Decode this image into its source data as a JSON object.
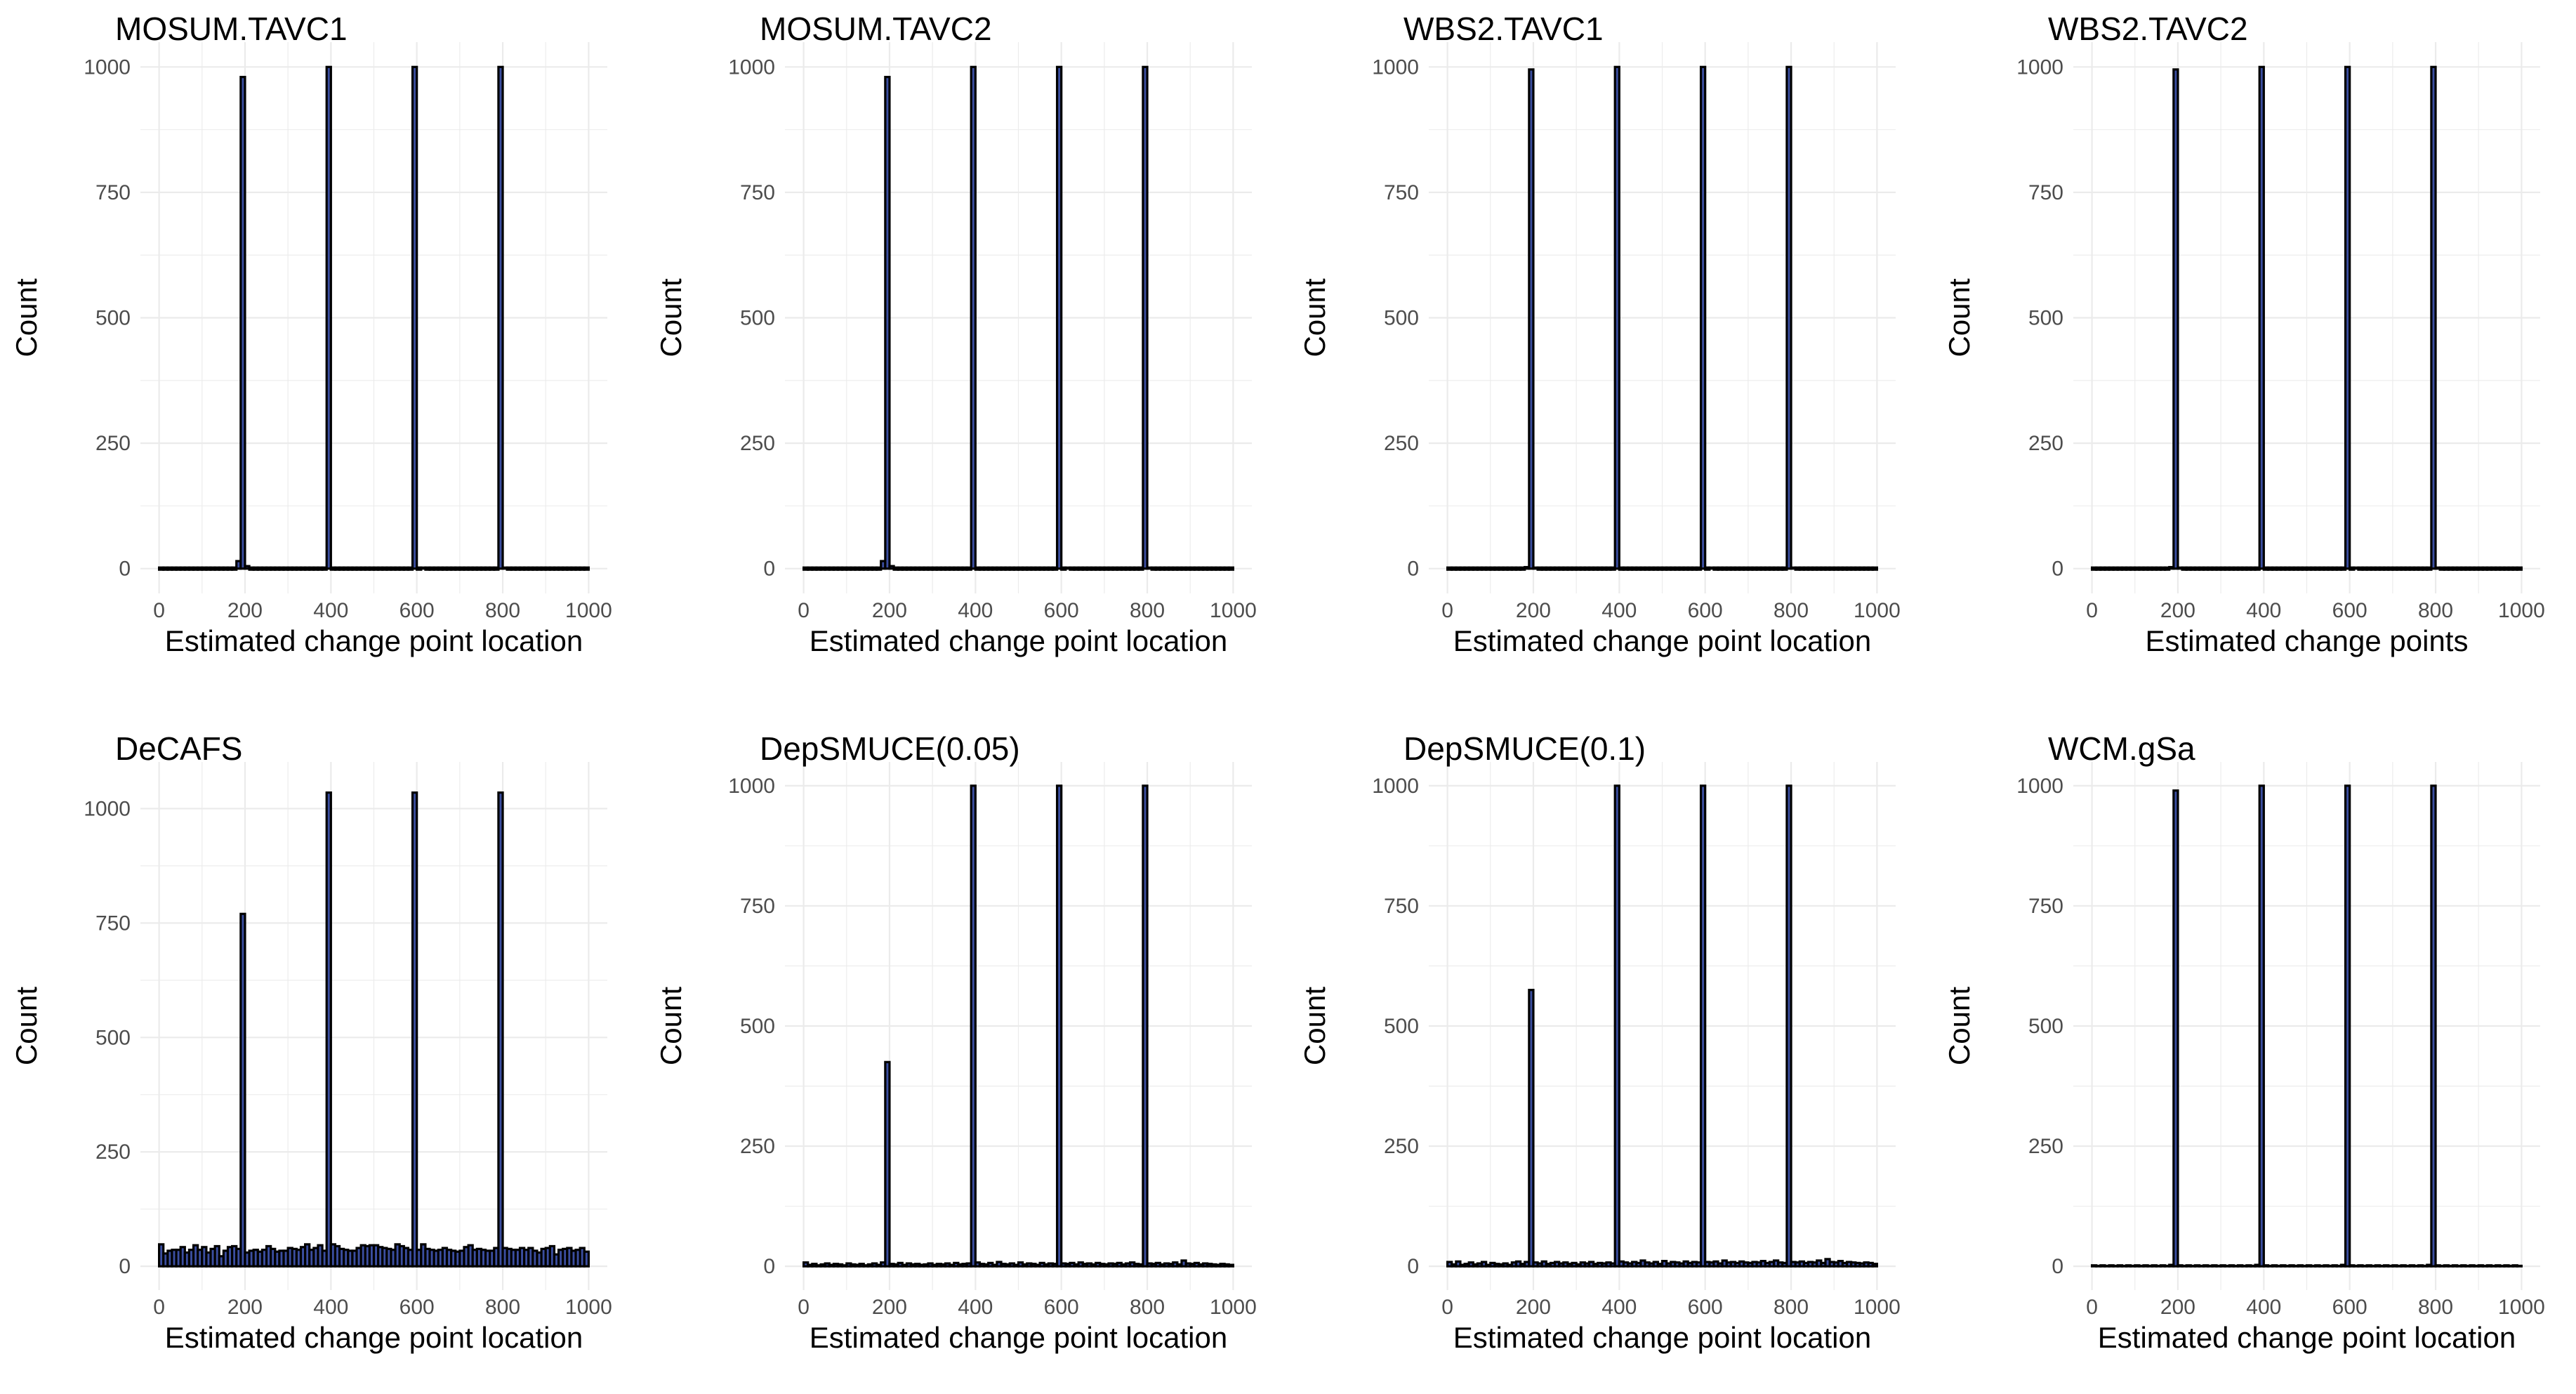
{
  "chart_data": [
    {
      "type": "bar",
      "title": "MOSUM.TAVC1",
      "xlabel": "Estimated change point location",
      "ylabel": "Count",
      "xlim": [
        0,
        1000
      ],
      "ylim": [
        0,
        1000
      ],
      "xticks": [
        "0",
        "200",
        "400",
        "600",
        "800",
        "1000"
      ],
      "yticks": [
        "0",
        "250",
        "500",
        "750",
        "1000"
      ],
      "grid": true,
      "bin_width": 10,
      "bins": [
        [
          180,
          15
        ],
        [
          190,
          980
        ],
        [
          200,
          5
        ],
        [
          390,
          1000
        ],
        [
          590,
          1000
        ],
        [
          610,
          2
        ],
        [
          790,
          1000
        ],
        [
          800,
          2
        ]
      ],
      "baseline": 0
    },
    {
      "type": "bar",
      "title": "MOSUM.TAVC2",
      "xlabel": "Estimated change point location",
      "ylabel": "Count",
      "xlim": [
        0,
        1000
      ],
      "ylim": [
        0,
        1000
      ],
      "xticks": [
        "0",
        "200",
        "400",
        "600",
        "800",
        "1000"
      ],
      "yticks": [
        "0",
        "250",
        "500",
        "750",
        "1000"
      ],
      "grid": true,
      "bin_width": 10,
      "bins": [
        [
          180,
          15
        ],
        [
          190,
          980
        ],
        [
          200,
          5
        ],
        [
          390,
          1000
        ],
        [
          590,
          1000
        ],
        [
          610,
          2
        ],
        [
          790,
          1000
        ],
        [
          800,
          2
        ]
      ],
      "baseline": 0
    },
    {
      "type": "bar",
      "title": "WBS2.TAVC1",
      "xlabel": "Estimated change point location",
      "ylabel": "Count",
      "xlim": [
        0,
        1000
      ],
      "ylim": [
        0,
        1000
      ],
      "xticks": [
        "0",
        "200",
        "400",
        "600",
        "800",
        "1000"
      ],
      "yticks": [
        "0",
        "250",
        "500",
        "750",
        "1000"
      ],
      "grid": true,
      "bin_width": 10,
      "bins": [
        [
          180,
          3
        ],
        [
          190,
          995
        ],
        [
          200,
          2
        ],
        [
          390,
          1000
        ],
        [
          590,
          1000
        ],
        [
          610,
          2
        ],
        [
          790,
          1000
        ],
        [
          800,
          2
        ]
      ],
      "baseline": 0
    },
    {
      "type": "bar",
      "title": "WBS2.TAVC2",
      "xlabel": "Estimated change points",
      "ylabel": "Count",
      "xlim": [
        0,
        1000
      ],
      "ylim": [
        0,
        1000
      ],
      "xticks": [
        "0",
        "200",
        "400",
        "600",
        "800",
        "1000"
      ],
      "yticks": [
        "0",
        "250",
        "500",
        "750",
        "1000"
      ],
      "grid": true,
      "bin_width": 10,
      "bins": [
        [
          180,
          3
        ],
        [
          190,
          995
        ],
        [
          200,
          2
        ],
        [
          390,
          1000
        ],
        [
          590,
          1000
        ],
        [
          610,
          2
        ],
        [
          790,
          1000
        ],
        [
          800,
          2
        ]
      ],
      "baseline": 0
    },
    {
      "type": "bar",
      "title": "DeCAFS",
      "xlabel": "Estimated change point location",
      "ylabel": "Count",
      "xlim": [
        0,
        1000
      ],
      "ylim": [
        0,
        1050
      ],
      "xticks": [
        "0",
        "200",
        "400",
        "600",
        "800",
        "1000"
      ],
      "yticks": [
        "0",
        "250",
        "500",
        "750",
        "1000"
      ],
      "grid": true,
      "bin_width": 10,
      "bins": [
        [
          190,
          770
        ],
        [
          390,
          1035
        ],
        [
          590,
          1035
        ],
        [
          790,
          1035
        ]
      ],
      "background_counts": [
        48,
        28,
        34,
        36,
        36,
        42,
        30,
        36,
        46,
        36,
        42,
        30,
        38,
        44,
        22,
        34,
        42,
        44,
        38,
        34,
        30,
        34,
        36,
        32,
        36,
        44,
        38,
        32,
        34,
        34,
        40,
        38,
        36,
        42,
        48,
        36,
        40,
        46,
        34,
        38,
        48,
        44,
        38,
        36,
        34,
        34,
        40,
        46,
        44,
        46,
        46,
        42,
        40,
        38,
        36,
        48,
        44,
        40,
        36,
        32,
        36,
        48,
        38,
        36,
        34,
        36,
        40,
        36,
        34,
        32,
        34,
        42,
        46,
        36,
        38,
        36,
        34,
        34,
        40,
        34,
        40,
        38,
        36,
        36,
        40,
        36,
        40,
        34,
        30,
        38,
        40,
        44,
        26,
        36,
        38,
        40,
        34,
        36,
        40,
        32
      ]
    },
    {
      "type": "bar",
      "title": "DepSMUCE(0.05)",
      "xlabel": "Estimated change point location",
      "ylabel": "Count",
      "xlim": [
        0,
        1000
      ],
      "ylim": [
        0,
        1000
      ],
      "xticks": [
        "0",
        "200",
        "400",
        "600",
        "800",
        "1000"
      ],
      "yticks": [
        "0",
        "250",
        "500",
        "750",
        "1000"
      ],
      "grid": true,
      "bin_width": 10,
      "bins": [
        [
          190,
          425
        ],
        [
          390,
          1000
        ],
        [
          590,
          1000
        ],
        [
          790,
          1000
        ]
      ],
      "background_counts": [
        8,
        3,
        5,
        2,
        4,
        6,
        3,
        5,
        4,
        2,
        6,
        4,
        3,
        5,
        2,
        4,
        6,
        3,
        8,
        0,
        5,
        4,
        7,
        3,
        6,
        4,
        5,
        3,
        4,
        6,
        3,
        5,
        4,
        6,
        3,
        7,
        4,
        5,
        6,
        0,
        8,
        5,
        4,
        7,
        3,
        9,
        5,
        4,
        6,
        3,
        8,
        4,
        6,
        5,
        3,
        7,
        4,
        6,
        5,
        0,
        6,
        5,
        7,
        4,
        8,
        5,
        6,
        4,
        7,
        5,
        4,
        6,
        5,
        7,
        4,
        6,
        8,
        5,
        4,
        0,
        6,
        5,
        7,
        4,
        6,
        5,
        8,
        4,
        12,
        6,
        5,
        7,
        4,
        6,
        5,
        4,
        3,
        5,
        4,
        3
      ]
    },
    {
      "type": "bar",
      "title": "DepSMUCE(0.1)",
      "xlabel": "Estimated change point location",
      "ylabel": "Count",
      "xlim": [
        0,
        1000
      ],
      "ylim": [
        0,
        1000
      ],
      "xticks": [
        "0",
        "200",
        "400",
        "600",
        "800",
        "1000"
      ],
      "yticks": [
        "0",
        "250",
        "500",
        "750",
        "1000"
      ],
      "grid": true,
      "bin_width": 10,
      "bins": [
        [
          190,
          575
        ],
        [
          390,
          1000
        ],
        [
          590,
          1000
        ],
        [
          790,
          1000
        ]
      ],
      "background_counts": [
        9,
        4,
        10,
        3,
        5,
        8,
        4,
        6,
        9,
        3,
        7,
        5,
        4,
        6,
        3,
        8,
        10,
        5,
        9,
        0,
        8,
        6,
        10,
        5,
        7,
        9,
        6,
        8,
        5,
        7,
        4,
        8,
        6,
        9,
        5,
        7,
        6,
        8,
        6,
        0,
        10,
        8,
        6,
        9,
        7,
        12,
        8,
        6,
        9,
        5,
        11,
        6,
        9,
        8,
        6,
        10,
        7,
        9,
        8,
        0,
        9,
        8,
        10,
        6,
        12,
        8,
        9,
        7,
        10,
        8,
        7,
        9,
        8,
        11,
        7,
        9,
        12,
        8,
        7,
        0,
        9,
        8,
        10,
        7,
        9,
        8,
        12,
        7,
        15,
        9,
        8,
        11,
        7,
        9,
        8,
        7,
        6,
        8,
        7,
        5
      ]
    },
    {
      "type": "bar",
      "title": "WCM.gSa",
      "xlabel": "Estimated change point location",
      "ylabel": "Count",
      "xlim": [
        0,
        1000
      ],
      "ylim": [
        0,
        1000
      ],
      "xticks": [
        "0",
        "200",
        "400",
        "600",
        "800",
        "1000"
      ],
      "yticks": [
        "0",
        "250",
        "500",
        "750",
        "1000"
      ],
      "grid": true,
      "bin_width": 10,
      "bins": [
        [
          190,
          990
        ],
        [
          390,
          1000
        ],
        [
          590,
          1000
        ],
        [
          790,
          1000
        ]
      ],
      "background_counts": [
        2,
        1,
        2,
        1,
        2,
        1,
        2,
        1,
        2,
        1,
        2,
        1,
        2,
        1,
        2,
        1,
        2,
        1,
        3,
        0,
        2,
        1,
        2,
        1,
        2,
        1,
        2,
        1,
        2,
        1,
        2,
        1,
        2,
        1,
        2,
        1,
        2,
        1,
        3,
        0,
        2,
        1,
        2,
        1,
        2,
        1,
        2,
        1,
        2,
        1,
        2,
        1,
        2,
        1,
        2,
        1,
        2,
        1,
        3,
        0,
        2,
        1,
        2,
        1,
        2,
        1,
        2,
        1,
        2,
        1,
        2,
        1,
        2,
        1,
        2,
        1,
        2,
        1,
        3,
        0,
        2,
        1,
        2,
        1,
        2,
        1,
        2,
        1,
        2,
        1,
        2,
        1,
        2,
        1,
        2,
        1,
        2,
        1,
        2,
        1
      ]
    }
  ],
  "colors": {
    "bar_fill": "#3b4ea0",
    "bar_outline": "#000000",
    "grid": "#ebebeb",
    "tick_text": "#4d4d4d",
    "title_text": "#000000"
  }
}
